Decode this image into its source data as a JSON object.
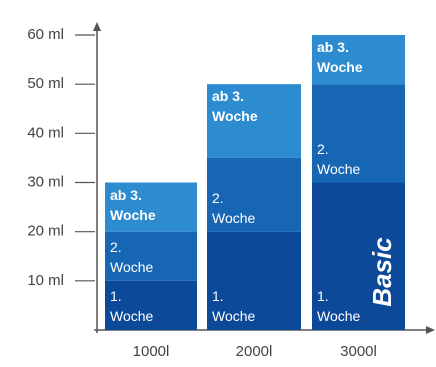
{
  "chart_data": {
    "type": "stacked-bar",
    "categories": [
      "1000l",
      "2000l",
      "3000l"
    ],
    "series": [
      {
        "name": "1. Woche",
        "color": "#0c4a99",
        "values": [
          10,
          20,
          30
        ]
      },
      {
        "name": "2. Woche",
        "color": "#1766b3",
        "values": [
          10,
          15,
          20
        ]
      },
      {
        "name": "ab 3. Woche",
        "color": "#2d8bd0",
        "values": [
          10,
          15,
          10
        ]
      }
    ],
    "ylim": [
      0,
      60
    ],
    "yticks": [
      {
        "value": 10,
        "label": "10 ml"
      },
      {
        "value": 20,
        "label": "20 ml"
      },
      {
        "value": 30,
        "label": "30 ml"
      },
      {
        "value": 40,
        "label": "40 ml"
      },
      {
        "value": 50,
        "label": "50 ml"
      },
      {
        "value": 60,
        "label": "60 ml"
      }
    ],
    "annotation": "Basic"
  }
}
